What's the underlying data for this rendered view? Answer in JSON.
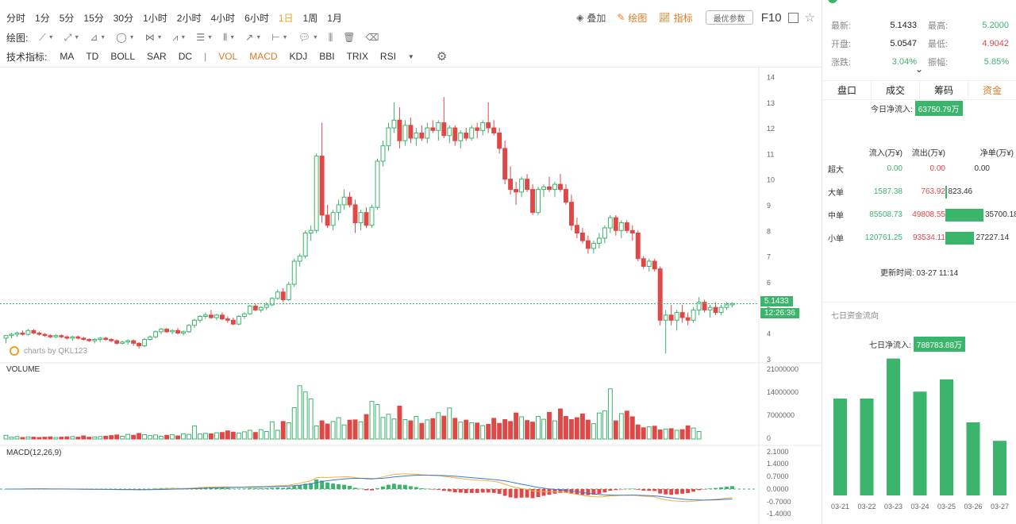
{
  "toolbar": {
    "periods": [
      "分时",
      "1分",
      "5分",
      "15分",
      "30分",
      "1小时",
      "2小时",
      "4小时",
      "6小时",
      "1日",
      "1周",
      "1月"
    ],
    "active_period": "1日",
    "overlay_label": "叠加",
    "draw_label": "绘图",
    "indicator_label": "指标",
    "pref_label": "最优参数",
    "f10_label": "F10"
  },
  "draw_row": {
    "label": "绘图:"
  },
  "indicator_row": {
    "label": "技术指标:",
    "overlays": [
      "MA",
      "TD",
      "BOLL",
      "SAR",
      "DC"
    ],
    "separator": "|",
    "subs": [
      "VOL",
      "MACD",
      "KDJ",
      "BBI",
      "TRIX",
      "RSI"
    ],
    "selected": [
      "VOL",
      "MACD"
    ]
  },
  "chart_data": [
    {
      "type": "candlestick",
      "title": "",
      "y_ticks": [
        3,
        4,
        5,
        6,
        7,
        8,
        9,
        10,
        11,
        12,
        13,
        14
      ],
      "ylim": [
        2.9,
        14.2
      ],
      "last_price": "5.1433",
      "countdown": "12:26:36",
      "watermark": "charts by QKL123",
      "up_color": "#3bb46c",
      "down_color": "#e04848",
      "candles": [
        [
          3.8,
          3.9,
          3.6,
          3.9
        ],
        [
          3.9,
          4.0,
          3.8,
          3.95
        ],
        [
          3.95,
          4.05,
          3.85,
          4.0
        ],
        [
          4.0,
          4.1,
          3.9,
          3.95
        ],
        [
          3.95,
          4.15,
          3.9,
          4.1
        ],
        [
          4.1,
          4.15,
          3.95,
          4.0
        ],
        [
          4.0,
          4.05,
          3.9,
          3.95
        ],
        [
          3.95,
          4.0,
          3.85,
          3.9
        ],
        [
          3.9,
          3.95,
          3.8,
          3.85
        ],
        [
          3.85,
          3.95,
          3.8,
          3.9
        ],
        [
          3.9,
          3.95,
          3.8,
          3.85
        ],
        [
          3.85,
          3.9,
          3.75,
          3.8
        ],
        [
          3.8,
          3.9,
          3.7,
          3.85
        ],
        [
          3.85,
          3.9,
          3.75,
          3.8
        ],
        [
          3.8,
          3.85,
          3.7,
          3.75
        ],
        [
          3.75,
          3.8,
          3.65,
          3.7
        ],
        [
          3.7,
          3.8,
          3.6,
          3.75
        ],
        [
          3.75,
          3.85,
          3.65,
          3.8
        ],
        [
          3.8,
          3.85,
          3.7,
          3.75
        ],
        [
          3.75,
          3.8,
          3.65,
          3.7
        ],
        [
          3.7,
          3.75,
          3.55,
          3.6
        ],
        [
          3.6,
          3.7,
          3.55,
          3.65
        ],
        [
          3.65,
          3.75,
          3.55,
          3.7
        ],
        [
          3.7,
          3.75,
          3.5,
          3.6
        ],
        [
          3.6,
          3.65,
          3.4,
          3.5
        ],
        [
          3.5,
          3.8,
          3.45,
          3.75
        ],
        [
          3.75,
          3.9,
          3.7,
          3.85
        ],
        [
          3.85,
          4.1,
          3.8,
          4.05
        ],
        [
          4.05,
          4.2,
          3.95,
          4.15
        ],
        [
          4.15,
          4.2,
          4.0,
          4.05
        ],
        [
          4.05,
          4.15,
          3.95,
          4.1
        ],
        [
          4.1,
          4.2,
          3.95,
          4.0
        ],
        [
          4.0,
          4.1,
          3.9,
          4.05
        ],
        [
          4.05,
          4.35,
          4.0,
          4.3
        ],
        [
          4.3,
          4.55,
          4.2,
          4.5
        ],
        [
          4.5,
          4.7,
          4.4,
          4.65
        ],
        [
          4.65,
          4.8,
          4.55,
          4.7
        ],
        [
          4.7,
          4.9,
          4.55,
          4.6
        ],
        [
          4.6,
          4.75,
          4.5,
          4.7
        ],
        [
          4.7,
          4.8,
          4.5,
          4.55
        ],
        [
          4.55,
          4.65,
          4.4,
          4.5
        ],
        [
          4.5,
          4.6,
          4.3,
          4.35
        ],
        [
          4.35,
          4.7,
          4.3,
          4.65
        ],
        [
          4.65,
          4.8,
          4.55,
          4.75
        ],
        [
          4.75,
          5.1,
          4.7,
          5.05
        ],
        [
          5.05,
          5.15,
          4.85,
          4.9
        ],
        [
          4.9,
          5.05,
          4.8,
          5.0
        ],
        [
          5.0,
          5.2,
          4.9,
          5.1
        ],
        [
          5.1,
          5.4,
          5.05,
          5.35
        ],
        [
          5.35,
          5.7,
          5.3,
          5.6
        ],
        [
          5.6,
          5.75,
          5.2,
          5.3
        ],
        [
          5.3,
          6.0,
          5.25,
          5.9
        ],
        [
          5.9,
          6.9,
          5.8,
          6.8
        ],
        [
          6.8,
          7.1,
          6.6,
          7.0
        ],
        [
          7.0,
          8.0,
          6.9,
          7.9
        ],
        [
          7.9,
          8.2,
          7.6,
          8.0
        ],
        [
          8.0,
          11.0,
          7.9,
          10.9
        ],
        [
          10.9,
          12.2,
          8.3,
          8.6
        ],
        [
          8.6,
          9.0,
          8.1,
          8.2
        ],
        [
          8.2,
          8.8,
          8.0,
          8.7
        ],
        [
          8.7,
          9.2,
          8.4,
          9.0
        ],
        [
          9.0,
          9.6,
          8.8,
          9.3
        ],
        [
          9.3,
          9.5,
          8.9,
          9.0
        ],
        [
          9.0,
          9.2,
          7.9,
          8.3
        ],
        [
          8.3,
          8.8,
          8.0,
          8.7
        ],
        [
          8.7,
          8.9,
          8.1,
          8.2
        ],
        [
          8.2,
          9.0,
          8.1,
          8.9
        ],
        [
          8.9,
          10.8,
          8.8,
          10.7
        ],
        [
          10.7,
          11.5,
          10.5,
          11.3
        ],
        [
          11.3,
          12.2,
          11.1,
          12.0
        ],
        [
          12.0,
          13.0,
          11.8,
          12.3
        ],
        [
          12.3,
          12.8,
          11.2,
          11.5
        ],
        [
          11.5,
          12.3,
          11.3,
          12.1
        ],
        [
          12.1,
          12.4,
          11.4,
          11.6
        ],
        [
          11.6,
          12.0,
          11.3,
          11.8
        ],
        [
          11.8,
          12.1,
          11.5,
          11.6
        ],
        [
          11.6,
          12.2,
          11.4,
          12.0
        ],
        [
          12.0,
          12.3,
          11.8,
          11.9
        ],
        [
          11.9,
          12.3,
          11.5,
          12.2
        ],
        [
          12.2,
          13.2,
          11.6,
          11.7
        ],
        [
          11.7,
          12.1,
          11.4,
          12.0
        ],
        [
          12.0,
          12.1,
          11.3,
          11.5
        ],
        [
          11.5,
          11.9,
          11.2,
          11.8
        ],
        [
          11.8,
          12.0,
          11.5,
          11.6
        ],
        [
          11.6,
          12.1,
          11.5,
          12.0
        ],
        [
          12.0,
          12.2,
          11.6,
          11.9
        ],
        [
          11.9,
          12.3,
          11.7,
          12.2
        ],
        [
          12.2,
          13.0,
          11.8,
          12.0
        ],
        [
          12.0,
          12.3,
          11.7,
          11.8
        ],
        [
          11.8,
          12.0,
          11.0,
          11.2
        ],
        [
          11.2,
          11.5,
          9.8,
          10.0
        ],
        [
          10.0,
          10.5,
          9.4,
          9.6
        ],
        [
          9.6,
          9.9,
          9.0,
          9.5
        ],
        [
          9.5,
          10.1,
          9.3,
          10.0
        ],
        [
          10.0,
          10.2,
          9.5,
          9.6
        ],
        [
          9.6,
          9.8,
          8.6,
          8.7
        ],
        [
          8.7,
          9.7,
          8.6,
          9.6
        ],
        [
          9.6,
          9.8,
          9.3,
          9.7
        ],
        [
          9.7,
          10.1,
          9.5,
          9.6
        ],
        [
          9.6,
          9.9,
          9.3,
          9.8
        ],
        [
          9.8,
          10.2,
          9.5,
          9.6
        ],
        [
          9.6,
          9.8,
          9.0,
          9.1
        ],
        [
          9.1,
          9.4,
          8.0,
          8.2
        ],
        [
          8.2,
          8.5,
          7.7,
          7.9
        ],
        [
          7.9,
          8.1,
          7.5,
          7.6
        ],
        [
          7.6,
          7.8,
          7.1,
          7.3
        ],
        [
          7.3,
          7.6,
          7.1,
          7.5
        ],
        [
          7.5,
          7.9,
          7.3,
          7.7
        ],
        [
          7.7,
          8.2,
          7.5,
          8.1
        ],
        [
          8.1,
          8.6,
          7.9,
          8.5
        ],
        [
          8.5,
          8.6,
          7.8,
          8.0
        ],
        [
          8.0,
          8.4,
          7.7,
          8.3
        ],
        [
          8.3,
          8.4,
          7.9,
          8.0
        ],
        [
          8.0,
          8.2,
          7.6,
          7.9
        ],
        [
          7.9,
          8.0,
          6.8,
          6.9
        ],
        [
          6.9,
          7.0,
          6.5,
          6.6
        ],
        [
          6.6,
          6.9,
          6.4,
          6.8
        ],
        [
          6.8,
          6.9,
          6.4,
          6.5
        ],
        [
          6.5,
          6.6,
          4.3,
          4.5
        ],
        [
          4.5,
          4.9,
          3.2,
          4.7
        ],
        [
          4.7,
          5.1,
          4.3,
          4.5
        ],
        [
          4.5,
          4.9,
          4.1,
          4.8
        ],
        [
          4.8,
          5.1,
          4.4,
          4.6
        ],
        [
          4.6,
          4.8,
          4.3,
          4.5
        ],
        [
          4.5,
          5.0,
          4.4,
          4.9
        ],
        [
          4.9,
          5.4,
          4.7,
          5.2
        ],
        [
          5.2,
          5.3,
          4.8,
          4.9
        ],
        [
          4.9,
          5.1,
          4.6,
          5.0
        ],
        [
          5.0,
          5.2,
          4.7,
          4.8
        ],
        [
          4.8,
          5.1,
          4.7,
          5.0
        ],
        [
          5.0,
          5.2,
          4.9,
          5.1
        ],
        [
          5.1,
          5.2,
          5.0,
          5.15
        ]
      ]
    },
    {
      "type": "bar",
      "title": "VOLUME",
      "y_ticks": [
        "21000000",
        "14000000",
        "7000000",
        "0"
      ],
      "ylim": [
        0,
        21000000
      ],
      "values": [
        1.2,
        0.6,
        0.8,
        0.5,
        0.7,
        0.6,
        0.5,
        0.6,
        0.7,
        0.5,
        0.6,
        0.7,
        0.8,
        0.6,
        1.0,
        0.6,
        0.7,
        0.8,
        0.9,
        1.1,
        1.3,
        0.9,
        1.5,
        1.2,
        1.8,
        1.4,
        1.1,
        1.3,
        0.9,
        1.2,
        1.4,
        1.0,
        1.7,
        1.5,
        4.2,
        1.6,
        1.8,
        1.7,
        2.0,
        2.1,
        2.6,
        2.2,
        1.9,
        2.3,
        2.8,
        2.1,
        3.0,
        2.4,
        5.5,
        2.8,
        5.6,
        5.2,
        10.0,
        17.0,
        15.0,
        12.8,
        4.2,
        5.8,
        4.8,
        5.6,
        6.8,
        4.5,
        6.0,
        6.1,
        5.5,
        7.8,
        12.0,
        11.0,
        6.9,
        7.9,
        6.4,
        10.5,
        6.2,
        5.8,
        7.2,
        5.0,
        6.1,
        6.5,
        8.4,
        7.3,
        9.9,
        6.6,
        5.4,
        6.0,
        5.2,
        5.1,
        4.3,
        4.7,
        6.6,
        5.0,
        6.2,
        5.6,
        8.3,
        7.1,
        5.9,
        5.4,
        7.2,
        6.3,
        8.5,
        5.8,
        9.6,
        7.2,
        6.2,
        6.8,
        8.0,
        6.0,
        4.9,
        8.3,
        9.0,
        16.0,
        5.8,
        8.1,
        8.9,
        7.1,
        4.5,
        3.6,
        3.9,
        4.1,
        2.9,
        3.2,
        3.3,
        2.8,
        3.0,
        4.2,
        3.5,
        2.4
      ],
      "value_unit": "millions"
    },
    {
      "type": "line+bar",
      "title": "MACD(12,26,9)",
      "y_ticks": [
        "2.1000",
        "1.4000",
        "0.7000",
        "0.0000",
        "-0.7000",
        "-1.4000"
      ],
      "ylim": [
        -1.75,
        2.3
      ]
    }
  ],
  "right": {
    "quote": {
      "latest_label": "最新:",
      "latest": "5.1433",
      "high_label": "最高:",
      "high": "5.2000",
      "open_label": "开盘:",
      "open": "5.0547",
      "low_label": "最低:",
      "low": "4.9042",
      "change_label": "涨跌:",
      "change": "3.04%",
      "amplitude_label": "振幅:",
      "amplitude": "5.85%"
    },
    "tabs": [
      "盘口",
      "成交",
      "筹码",
      "资金"
    ],
    "active_tab": "资金",
    "today_label": "今日净流入:",
    "today_value": "63750.79万",
    "flow_headers": [
      "流入(万¥)",
      "流出(万¥)",
      "净单(万¥)"
    ],
    "flow_rows": [
      {
        "name": "超大",
        "in": "0.00",
        "out": "0.00",
        "net": "0.00",
        "bar": 0
      },
      {
        "name": "大单",
        "in": "1587.38",
        "out": "763.92",
        "net": "823.46",
        "bar": 0.023
      },
      {
        "name": "中单",
        "in": "85508.73",
        "out": "49808.55",
        "net": "35700.18",
        "bar": 1.0
      },
      {
        "name": "小单",
        "in": "120761.25",
        "out": "93534.11",
        "net": "27227.14",
        "bar": 0.76
      }
    ],
    "update_time": "更新时间: 03-27 11:14",
    "seven_title": "七日资金流向",
    "seven_label": "七日净流入:",
    "seven_value": "788783.88万",
    "seven_days": {
      "categories": [
        "03-21",
        "03-22",
        "03-23",
        "03-24",
        "03-25",
        "03-26",
        "03-27"
      ],
      "values": [
        126,
        126,
        178,
        135,
        151,
        95,
        71
      ],
      "ylim": [
        0,
        190
      ]
    }
  }
}
